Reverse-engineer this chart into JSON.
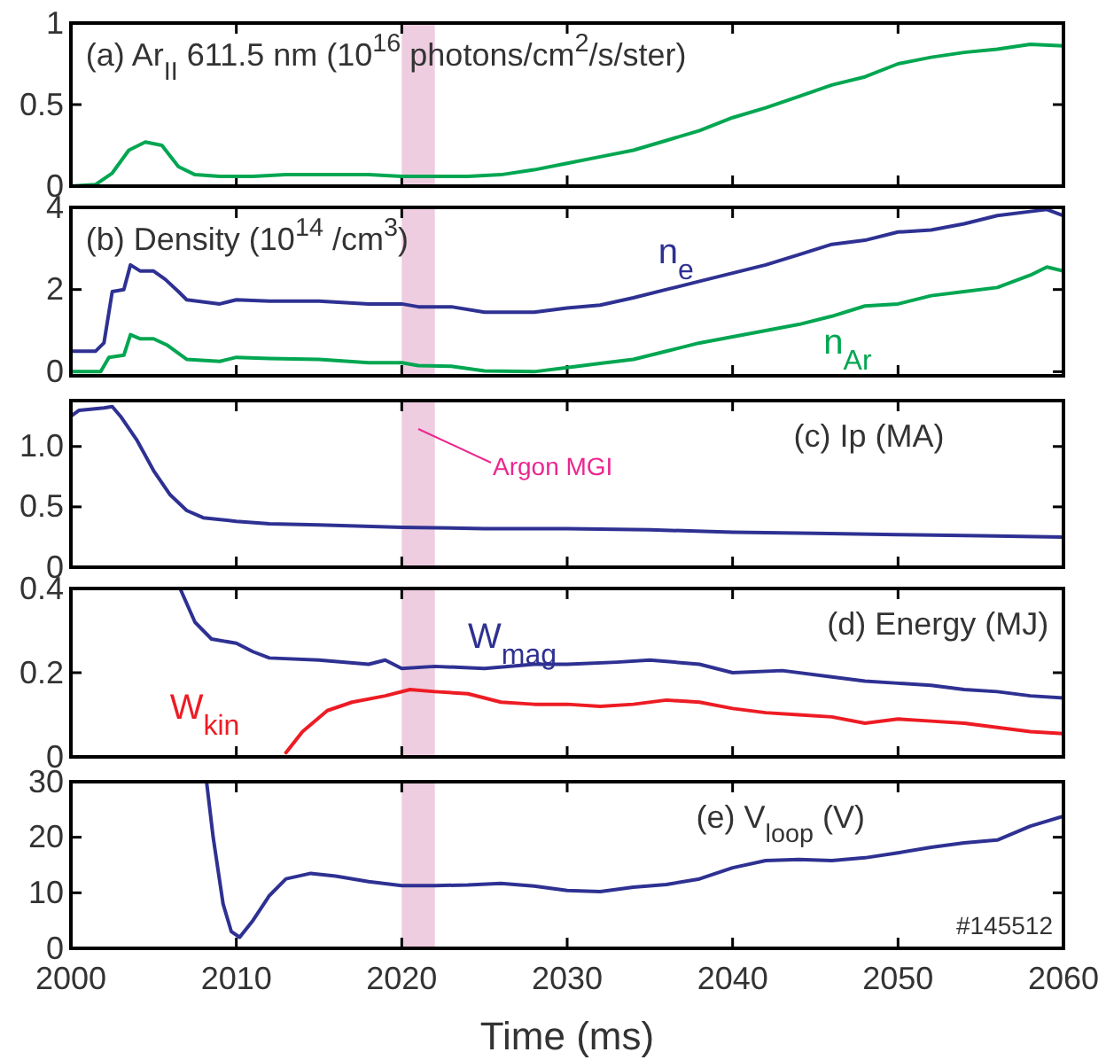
{
  "chart_data": [
    {
      "type": "line",
      "title": "(a) Ar$_{II}$ 611.5 nm (10$^{16}$ photons/cm$^{2}$/s/ster)",
      "xlim": [
        2000,
        2060
      ],
      "xticks": [
        2000,
        2010,
        2020,
        2030,
        2040,
        2050,
        2060
      ],
      "ylim": [
        0,
        1
      ],
      "yticks": [
        0,
        0.5,
        1
      ],
      "tick_labels": "y",
      "grid": false,
      "bands": [
        {
          "axis": "x",
          "from": 2020,
          "to": 2022,
          "color": "#eecde0"
        }
      ],
      "series": [
        {
          "color": "#00a651",
          "x": [
            2000,
            2001.5,
            2002.5,
            2003.5,
            2004.5,
            2005.5,
            2006.5,
            2007.5,
            2009,
            2011,
            2013,
            2015,
            2018,
            2020,
            2024,
            2026,
            2028,
            2030,
            2032,
            2034,
            2036,
            2038,
            2040,
            2042,
            2044,
            2046,
            2048,
            2050,
            2052,
            2054,
            2056,
            2058,
            2060
          ],
          "values": [
            0,
            0.01,
            0.08,
            0.22,
            0.27,
            0.25,
            0.12,
            0.07,
            0.06,
            0.06,
            0.07,
            0.07,
            0.07,
            0.06,
            0.06,
            0.07,
            0.1,
            0.14,
            0.18,
            0.22,
            0.28,
            0.34,
            0.42,
            0.48,
            0.55,
            0.62,
            0.67,
            0.75,
            0.79,
            0.82,
            0.84,
            0.87,
            0.86
          ]
        }
      ]
    },
    {
      "type": "line",
      "title": "(b) Density (10$^{14}$ /cm$^{3}$)",
      "xlim": [
        2000,
        2060
      ],
      "xticks": [
        2000,
        2010,
        2020,
        2030,
        2040,
        2050,
        2060
      ],
      "ylim": [
        -0.1,
        4
      ],
      "yticks": [
        0,
        2,
        4
      ],
      "tick_labels": "y",
      "grid": false,
      "bands": [
        {
          "axis": "x",
          "from": 2020,
          "to": 2022,
          "color": "#eecde0"
        }
      ],
      "series": [
        {
          "name": "n$_{e}$",
          "color": "#2e3192",
          "x": [
            2000,
            2001.5,
            2002,
            2002.5,
            2003.2,
            2003.6,
            2004.2,
            2005,
            2005.7,
            2006.5,
            2007,
            2009,
            2010,
            2012,
            2015,
            2018,
            2020,
            2021,
            2023,
            2025,
            2028,
            2030,
            2032,
            2034,
            2036,
            2038,
            2040,
            2042,
            2044,
            2046,
            2048,
            2050,
            2052,
            2054,
            2056,
            2058,
            2059,
            2060
          ],
          "values": [
            0.5,
            0.5,
            0.7,
            1.95,
            2.0,
            2.6,
            2.45,
            2.45,
            2.25,
            1.95,
            1.75,
            1.65,
            1.75,
            1.72,
            1.72,
            1.65,
            1.65,
            1.58,
            1.58,
            1.45,
            1.45,
            1.55,
            1.62,
            1.8,
            2.0,
            2.2,
            2.4,
            2.6,
            2.85,
            3.1,
            3.2,
            3.4,
            3.45,
            3.6,
            3.8,
            3.9,
            3.95,
            3.8
          ]
        },
        {
          "name": "n$_{Ar}$",
          "color": "#00a651",
          "x": [
            2000,
            2001.8,
            2002.3,
            2003.2,
            2003.6,
            2004.2,
            2005,
            2005.8,
            2007,
            2009,
            2010,
            2012,
            2015,
            2018,
            2020,
            2021,
            2023,
            2025,
            2028,
            2030,
            2032,
            2034,
            2036,
            2038,
            2040,
            2042,
            2044,
            2046,
            2048,
            2050,
            2052,
            2054,
            2056,
            2058,
            2059,
            2060
          ],
          "values": [
            0,
            0,
            0.35,
            0.4,
            0.9,
            0.8,
            0.8,
            0.65,
            0.3,
            0.25,
            0.35,
            0.32,
            0.3,
            0.22,
            0.22,
            0.15,
            0.13,
            0.02,
            0,
            0.1,
            0.2,
            0.3,
            0.5,
            0.7,
            0.85,
            1.0,
            1.15,
            1.35,
            1.6,
            1.65,
            1.85,
            1.95,
            2.05,
            2.35,
            2.55,
            2.45
          ]
        }
      ]
    },
    {
      "type": "line",
      "title": "(c) Ip (MA)",
      "xlim": [
        2000,
        2060
      ],
      "xticks": [
        2000,
        2010,
        2020,
        2030,
        2040,
        2050,
        2060
      ],
      "ylim": [
        0,
        1.38
      ],
      "yticks": [
        0,
        0.5,
        {
          "value": 1,
          "label": "1.0"
        }
      ],
      "tick_labels": "y",
      "grid": false,
      "bands": [
        {
          "axis": "x",
          "from": 2020,
          "to": 2022,
          "color": "#eecde0",
          "label": "Argon MGI"
        }
      ],
      "series": [
        {
          "color": "#2e3192",
          "x": [
            2000,
            2000.5,
            2002,
            2002.5,
            2003,
            2004,
            2005,
            2006,
            2007,
            2008,
            2010,
            2012,
            2015,
            2020,
            2025,
            2030,
            2035,
            2040,
            2045,
            2050,
            2055,
            2060
          ],
          "values": [
            1.25,
            1.3,
            1.32,
            1.33,
            1.25,
            1.05,
            0.8,
            0.6,
            0.47,
            0.41,
            0.38,
            0.36,
            0.35,
            0.33,
            0.32,
            0.32,
            0.31,
            0.29,
            0.28,
            0.27,
            0.26,
            0.25
          ]
        }
      ]
    },
    {
      "type": "line",
      "title": "(d) Energy (MJ)",
      "xlim": [
        2000,
        2060
      ],
      "xticks": [
        2000,
        2010,
        2020,
        2030,
        2040,
        2050,
        2060
      ],
      "ylim": [
        0,
        0.4
      ],
      "yticks": [
        0,
        0.2,
        0.4
      ],
      "tick_labels": "y",
      "grid": false,
      "bands": [
        {
          "axis": "x",
          "from": 2020,
          "to": 2022,
          "color": "#eecde0"
        }
      ],
      "series": [
        {
          "name": "W$_{mag}$",
          "color": "#2e3192",
          "x": [
            2006.6,
            2007.5,
            2008.5,
            2010,
            2011,
            2012,
            2015,
            2018,
            2019,
            2020,
            2022,
            2025,
            2028,
            2030,
            2033,
            2035,
            2038,
            2040,
            2043,
            2046,
            2048,
            2050,
            2052,
            2054,
            2056,
            2058,
            2060
          ],
          "values": [
            0.4,
            0.32,
            0.28,
            0.27,
            0.25,
            0.235,
            0.23,
            0.22,
            0.23,
            0.21,
            0.215,
            0.21,
            0.22,
            0.22,
            0.225,
            0.23,
            0.22,
            0.2,
            0.205,
            0.19,
            0.18,
            0.175,
            0.17,
            0.16,
            0.155,
            0.145,
            0.14
          ]
        },
        {
          "name": "W$_{kin}$",
          "color": "#ed1c24",
          "x": [
            2013,
            2014,
            2015.5,
            2017,
            2019,
            2020.5,
            2022,
            2024,
            2026,
            2028,
            2030,
            2032,
            2034,
            2036,
            2038,
            2040,
            2042,
            2044,
            2046,
            2048,
            2050,
            2052,
            2054,
            2056,
            2058,
            2060
          ],
          "values": [
            0.01,
            0.06,
            0.11,
            0.13,
            0.145,
            0.16,
            0.155,
            0.15,
            0.13,
            0.125,
            0.125,
            0.12,
            0.125,
            0.135,
            0.13,
            0.115,
            0.105,
            0.1,
            0.095,
            0.08,
            0.09,
            0.085,
            0.08,
            0.07,
            0.06,
            0.055
          ]
        }
      ]
    },
    {
      "type": "line",
      "title": "(e) V$_{loop}$ (V)",
      "xlabel": "Time (ms)",
      "xlim": [
        2000,
        2060
      ],
      "xticks": [
        2000,
        2010,
        2020,
        2030,
        2040,
        2050,
        2060
      ],
      "ylim": [
        0,
        30
      ],
      "yticks": [
        0,
        10,
        20,
        30
      ],
      "grid": false,
      "annotations": [
        "#145512"
      ],
      "bands": [
        {
          "axis": "x",
          "from": 2020,
          "to": 2022,
          "color": "#eecde0"
        }
      ],
      "series": [
        {
          "color": "#2e3192",
          "x": [
            2008.2,
            2008.6,
            2009.2,
            2009.7,
            2010.2,
            2011,
            2012,
            2013,
            2014.5,
            2016,
            2018,
            2020,
            2022,
            2024,
            2026,
            2028,
            2030,
            2032,
            2034,
            2036,
            2038,
            2040,
            2042,
            2044,
            2046,
            2048,
            2050,
            2052,
            2054,
            2056,
            2058,
            2060
          ],
          "values": [
            30,
            20,
            8,
            3,
            2,
            5,
            9.5,
            12.5,
            13.5,
            13,
            12,
            11.3,
            11.3,
            11.4,
            11.7,
            11.2,
            10.4,
            10.2,
            11,
            11.5,
            12.5,
            14.5,
            15.8,
            16,
            15.8,
            16.3,
            17.2,
            18.2,
            19,
            19.5,
            22,
            23.8
          ]
        }
      ]
    }
  ]
}
